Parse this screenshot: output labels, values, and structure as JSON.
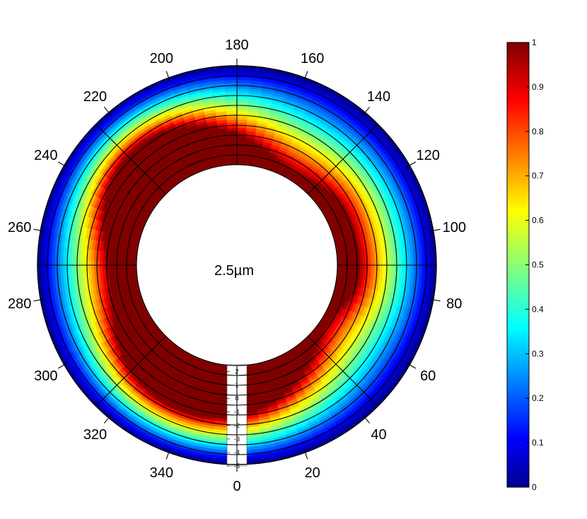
{
  "chart_data": {
    "type": "heatmap",
    "projection": "polar-annulus",
    "center_label": "2.5µm",
    "angle_ticks": [
      "0",
      "20",
      "40",
      "60",
      "80",
      "100",
      "120",
      "140",
      "160",
      "180",
      "200",
      "220",
      "240",
      "260",
      "280",
      "300",
      "320",
      "340"
    ],
    "angle_direction": "counterclockwise from bottom",
    "radial_ticks": [
      "2",
      "1",
      "0",
      "-1",
      "-2",
      "-3",
      "-4",
      "-5"
    ],
    "radial_range": [
      -5,
      2.5
    ],
    "colorbar": {
      "colormap": "jet",
      "range": [
        0,
        1
      ],
      "ticks": [
        "0",
        "0.1",
        "0.2",
        "0.3",
        "0.4",
        "0.5",
        "0.6",
        "0.7",
        "0.8",
        "0.9",
        "1"
      ]
    },
    "values_note": "",
    "colors": {
      "saturated": "#800000",
      "outer_edge": "#00008f",
      "background": "#ffffff",
      "grid": "#000000"
    }
  }
}
